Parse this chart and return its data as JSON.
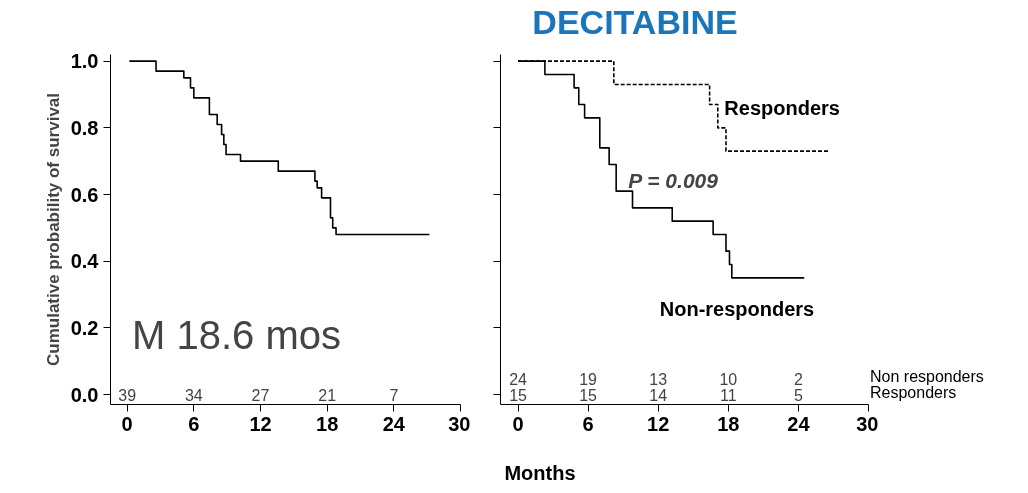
{
  "chart_data": [
    {
      "type": "step",
      "ylabel": "Cumulative probability of survival",
      "xlabel": "Months",
      "xlim": [
        -1.5,
        30
      ],
      "ylim": [
        -0.03,
        1.02
      ],
      "xticks": [
        0,
        6,
        12,
        18,
        24,
        30
      ],
      "yticks": [
        {
          "value": 0,
          "label": "0.0"
        },
        0.2,
        0.4,
        0.6,
        0.8,
        {
          "value": 1,
          "label": "1.0"
        }
      ],
      "grid": false,
      "series": [
        {
          "color": "#000000",
          "line_style": "solid",
          "x": [
            0.2,
            2.6,
            5.1,
            5.7,
            6.0,
            7.4,
            8.1,
            8.5,
            8.7,
            8.9,
            10.2,
            13.6,
            16.9,
            17.1,
            17.5,
            18.3,
            18.5,
            18.8,
            27.2
          ],
          "values": [
            1.0,
            0.97,
            0.95,
            0.92,
            0.89,
            0.84,
            0.81,
            0.78,
            0.75,
            0.72,
            0.7,
            0.67,
            0.64,
            0.62,
            0.59,
            0.53,
            0.5,
            0.48,
            0.48
          ]
        }
      ],
      "annotations": [
        "M 18.6 mos",
        "39",
        "34",
        "27",
        "21",
        "7"
      ]
    },
    {
      "type": "step",
      "title": "DECITABINE",
      "xlim": [
        -1.5,
        30
      ],
      "ylim": [
        -0.03,
        1.02
      ],
      "xticks": [
        0,
        6,
        12,
        18,
        24,
        30
      ],
      "yticks": [
        0,
        0.2,
        0.4,
        0.6,
        0.8,
        1.0
      ],
      "tick_labels": "x",
      "grid": false,
      "series": [
        {
          "name": "Responders",
          "color": "#000000",
          "line_style": "dashed",
          "x": [
            0,
            8.2,
            16.4,
            17.1,
            17.8,
            26.7
          ],
          "values": [
            1.0,
            0.93,
            0.87,
            0.8,
            0.73,
            0.73
          ]
        },
        {
          "name": "Non-responders",
          "color": "#000000",
          "line_style": "solid",
          "x": [
            0,
            2.3,
            4.8,
            5.2,
            5.7,
            7.0,
            7.8,
            8.4,
            9.8,
            13.2,
            16.7,
            17.8,
            18.1,
            18.3,
            24.5
          ],
          "values": [
            1.0,
            0.96,
            0.92,
            0.87,
            0.83,
            0.74,
            0.69,
            0.61,
            0.56,
            0.52,
            0.48,
            0.43,
            0.39,
            0.35,
            0.35
          ]
        }
      ],
      "annotations": [
        "P = 0.009",
        "24",
        "19",
        "13",
        "10",
        "2",
        "15",
        "15",
        "14",
        "11",
        "5",
        "Non responders",
        "Responders"
      ]
    }
  ]
}
